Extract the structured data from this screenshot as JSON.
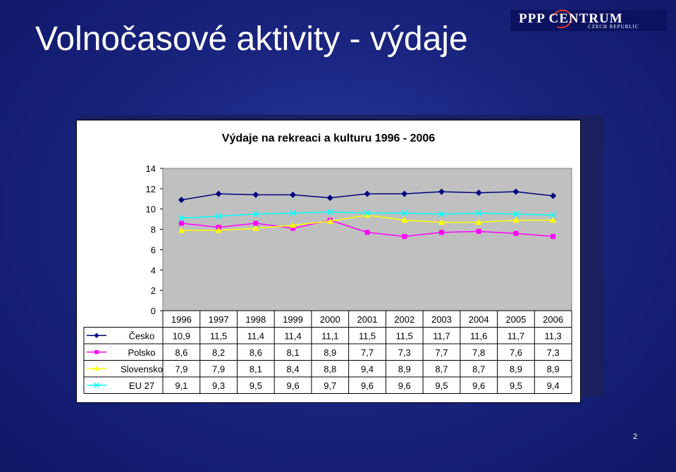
{
  "slide": {
    "title": "Volnočasové aktivity - výdaje",
    "page_number": "2"
  },
  "logo": {
    "main": "PPP CENTRUM",
    "sub": "CZECH REPUBLIC"
  },
  "colors": {
    "background": "#1a2580",
    "plot_area": "#c0c0c0"
  },
  "chart_data": {
    "type": "line",
    "title": "Výdaje na rekreaci a kulturu 1996 - 2006",
    "categories": [
      "1996",
      "1997",
      "1998",
      "1999",
      "2000",
      "2001",
      "2002",
      "2003",
      "2004",
      "2005",
      "2006"
    ],
    "ylim": [
      0,
      14
    ],
    "yticks": [
      "0",
      "2",
      "4",
      "6",
      "8",
      "10",
      "12",
      "14"
    ],
    "grid": false,
    "legend": "data-table",
    "series": [
      {
        "name": "Česko",
        "color": "#000080",
        "marker": "diamond",
        "values": [
          10.9,
          11.5,
          11.4,
          11.4,
          11.1,
          11.5,
          11.5,
          11.7,
          11.6,
          11.7,
          11.3
        ],
        "labels": [
          "10,9",
          "11,5",
          "11,4",
          "11,4",
          "11,1",
          "11,5",
          "11,5",
          "11,7",
          "11,6",
          "11,7",
          "11,3"
        ]
      },
      {
        "name": "Polsko",
        "color": "#ff00ff",
        "marker": "square",
        "values": [
          8.6,
          8.2,
          8.6,
          8.1,
          8.9,
          7.7,
          7.3,
          7.7,
          7.8,
          7.6,
          7.3
        ],
        "labels": [
          "8,6",
          "8,2",
          "8,6",
          "8,1",
          "8,9",
          "7,7",
          "7,3",
          "7,7",
          "7,8",
          "7,6",
          "7,3"
        ]
      },
      {
        "name": "Slovensko",
        "color": "#ffff00",
        "marker": "triangle",
        "values": [
          7.9,
          7.9,
          8.1,
          8.4,
          8.8,
          9.4,
          8.9,
          8.7,
          8.7,
          8.9,
          8.9
        ],
        "labels": [
          "7,9",
          "7,9",
          "8,1",
          "8,4",
          "8,8",
          "9,4",
          "8,9",
          "8,7",
          "8,7",
          "8,9",
          "8,9"
        ]
      },
      {
        "name": "EU 27",
        "color": "#00ffff",
        "marker": "x",
        "values": [
          9.1,
          9.3,
          9.5,
          9.6,
          9.7,
          9.6,
          9.6,
          9.5,
          9.6,
          9.5,
          9.4
        ],
        "labels": [
          "9,1",
          "9,3",
          "9,5",
          "9,6",
          "9,7",
          "9,6",
          "9,6",
          "9,5",
          "9,6",
          "9,5",
          "9,4"
        ]
      }
    ]
  }
}
